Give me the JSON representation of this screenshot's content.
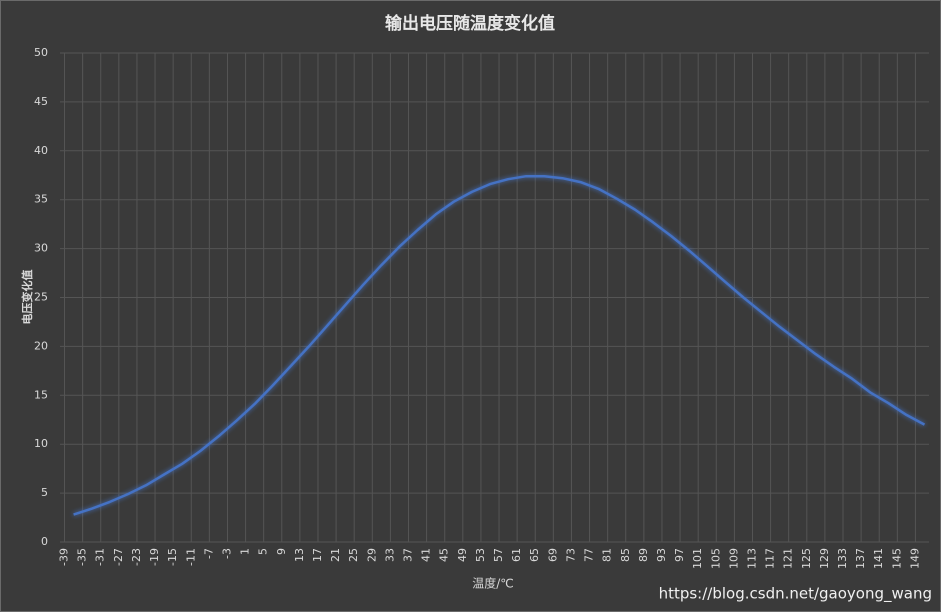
{
  "chart_data": {
    "type": "line",
    "title": "输出电压随温度变化值",
    "x_label": "温度/℃",
    "y_label": "电压变化值",
    "watermark": "https://blog.csdn.net/gaoyong_wang",
    "x": [
      -37,
      -33,
      -29,
      -25,
      -21,
      -17,
      -13,
      -9,
      -5,
      -1,
      3,
      7,
      11,
      15,
      19,
      23,
      27,
      31,
      35,
      39,
      43,
      47,
      51,
      55,
      59,
      63,
      67,
      71,
      75,
      79,
      83,
      87,
      91,
      95,
      99,
      103,
      107,
      111,
      115,
      119,
      123,
      127,
      131,
      135,
      139,
      143,
      147,
      151
    ],
    "series": [
      {
        "color": "#4472c4",
        "values": [
          2.8,
          3.4,
          4.1,
          4.9,
          5.8,
          6.9,
          8.0,
          9.3,
          10.8,
          12.4,
          14.1,
          16.0,
          18.0,
          20.0,
          22.1,
          24.2,
          26.3,
          28.3,
          30.2,
          31.9,
          33.5,
          34.8,
          35.8,
          36.6,
          37.1,
          37.4,
          37.4,
          37.2,
          36.8,
          36.1,
          35.1,
          34.0,
          32.7,
          31.3,
          29.8,
          28.2,
          26.6,
          25.0,
          23.5,
          22.0,
          20.6,
          19.2,
          17.9,
          16.7,
          15.3,
          14.2,
          13.0,
          12.0
        ]
      }
    ],
    "xlim": [
      -40,
      152
    ],
    "xticks": [
      -39,
      -35,
      -31,
      -27,
      -23,
      -19,
      -15,
      -11,
      -7,
      -3,
      1,
      5,
      9,
      13,
      17,
      21,
      25,
      29,
      33,
      37,
      41,
      45,
      49,
      53,
      57,
      61,
      65,
      69,
      73,
      77,
      81,
      85,
      89,
      93,
      97,
      101,
      105,
      109,
      113,
      117,
      121,
      125,
      129,
      133,
      137,
      141,
      145,
      149
    ],
    "ylim": [
      0,
      50
    ],
    "yticks": [
      0,
      5,
      10,
      15,
      20,
      25,
      30,
      35,
      40,
      45,
      50
    ],
    "grid": true
  }
}
